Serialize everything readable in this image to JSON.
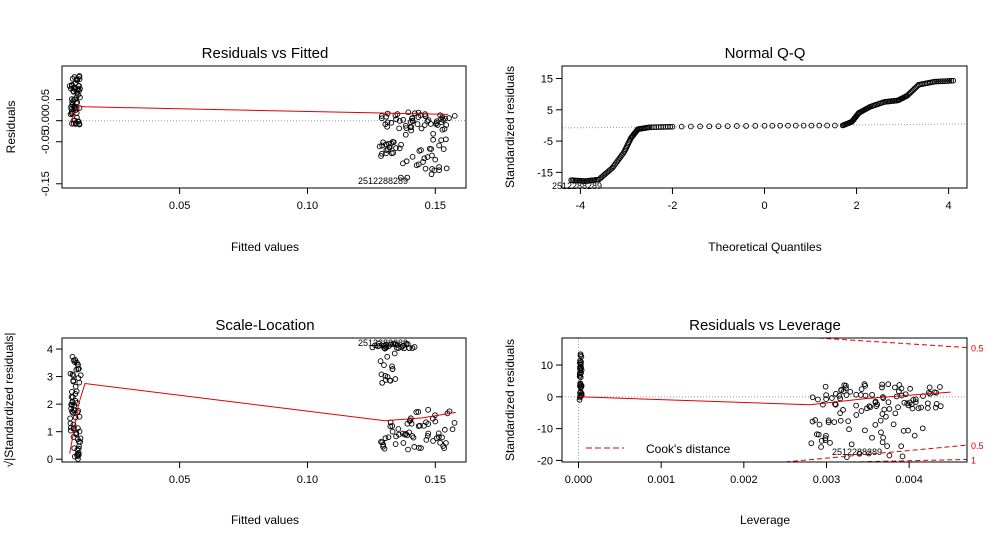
{
  "chart_data": [
    {
      "id": "residuals-vs-fitted",
      "type": "scatter",
      "title": "Residuals vs Fitted",
      "xlabel": "Fitted values",
      "ylabel": "Residuals",
      "xlim": [
        0.004,
        0.162
      ],
      "ylim": [
        -0.16,
        0.13
      ],
      "x_ticks": [
        {
          "value": 0.05,
          "label": "0.05"
        },
        {
          "value": 0.1,
          "label": "0.10"
        },
        {
          "value": 0.15,
          "label": "0.15"
        }
      ],
      "y_ticks": [
        {
          "value": 0.05,
          "label": "0.05"
        },
        {
          "value": 0.0,
          "label": "0.00"
        },
        {
          "value": -0.05,
          "label": "-0.05"
        },
        {
          "value": -0.15,
          "label": "-0.15"
        }
      ],
      "reference_line_y": 0,
      "point_clusters": [
        {
          "x_range": [
            0.007,
            0.0115
          ],
          "y_range": [
            -0.01,
            0.11
          ],
          "count": 60
        },
        {
          "x_range": [
            0.127,
            0.158
          ],
          "y_range": [
            -0.02,
            0.02
          ],
          "count": 45
        },
        {
          "x_range": [
            0.128,
            0.135
          ],
          "y_range": [
            -0.09,
            -0.05
          ],
          "count": 18
        },
        {
          "x_range": [
            0.135,
            0.157
          ],
          "y_range": [
            -0.14,
            0.0
          ],
          "count": 40
        }
      ],
      "smoother": {
        "x": [
          0.007,
          0.0105,
          0.013,
          0.155
        ],
        "y": [
          -0.005,
          0.035,
          0.033,
          0.015
        ]
      },
      "annotation": "2512288289"
    },
    {
      "id": "normal-qq",
      "type": "scatter",
      "title": "Normal Q-Q",
      "xlabel": "Theoretical Quantiles",
      "ylabel": "Standardized residuals",
      "xlim": [
        -4.4,
        4.4
      ],
      "ylim": [
        -20,
        19
      ],
      "x_ticks": [
        {
          "value": -4,
          "label": "-4"
        },
        {
          "value": -2,
          "label": "-2"
        },
        {
          "value": 0,
          "label": "0"
        },
        {
          "value": 2,
          "label": "2"
        },
        {
          "value": 4,
          "label": "4"
        }
      ],
      "y_ticks": [
        {
          "value": 15,
          "label": "15"
        },
        {
          "value": 5,
          "label": "5"
        },
        {
          "value": -5,
          "label": "-5"
        },
        {
          "value": -15,
          "label": "-15"
        }
      ],
      "qq_curve": {
        "x": [
          -4.2,
          -3.9,
          -3.6,
          -3.3,
          -3.05,
          -2.9,
          -2.75,
          -2.5,
          -2.0,
          0.0,
          1.7,
          1.9,
          2.05,
          2.3,
          2.6,
          2.9,
          3.1,
          3.35,
          3.7,
          4.1
        ],
        "y": [
          -17.5,
          -17.8,
          -17.3,
          -13.5,
          -8.5,
          -4.0,
          -1.2,
          -0.6,
          -0.4,
          -0.1,
          0.0,
          1.2,
          4.0,
          6.0,
          7.5,
          8.0,
          9.5,
          13.0,
          14.0,
          14.3
        ]
      },
      "reference_line": {
        "x": [
          -4.4,
          4.4
        ],
        "y": [
          -0.8,
          0.5
        ]
      },
      "annotation": "2512288289"
    },
    {
      "id": "scale-location",
      "type": "scatter",
      "title": "Scale-Location",
      "xlabel": "Fitted values",
      "ylabel": "√|Standardized residuals|",
      "xlim": [
        0.004,
        0.162
      ],
      "ylim": [
        -0.1,
        4.4
      ],
      "x_ticks": [
        {
          "value": 0.05,
          "label": "0.05"
        },
        {
          "value": 0.1,
          "label": "0.10"
        },
        {
          "value": 0.15,
          "label": "0.15"
        }
      ],
      "y_ticks": [
        {
          "value": 0,
          "label": "0"
        },
        {
          "value": 1,
          "label": "1"
        },
        {
          "value": 2,
          "label": "2"
        },
        {
          "value": 3,
          "label": "3"
        },
        {
          "value": 4,
          "label": "4"
        }
      ],
      "point_clusters": [
        {
          "x_range": [
            0.007,
            0.0115
          ],
          "y_range": [
            0.0,
            3.8
          ],
          "count": 70
        },
        {
          "x_range": [
            0.125,
            0.142
          ],
          "y_range": [
            4.0,
            4.2
          ],
          "count": 30
        },
        {
          "x_range": [
            0.128,
            0.135
          ],
          "y_range": [
            2.7,
            3.9
          ],
          "count": 15
        },
        {
          "x_range": [
            0.127,
            0.158
          ],
          "y_range": [
            0.3,
            1.8
          ],
          "count": 60
        }
      ],
      "smoother": {
        "x": [
          0.007,
          0.0105,
          0.013,
          0.13,
          0.145,
          0.158
        ],
        "y": [
          0.2,
          2.0,
          2.75,
          1.4,
          1.5,
          1.7
        ]
      },
      "annotation": "2512288289"
    },
    {
      "id": "residuals-vs-leverage",
      "type": "scatter",
      "title": "Residuals vs Leverage",
      "xlabel": "Leverage",
      "ylabel": "Standardized residuals",
      "xlim": [
        -0.0002,
        0.0047
      ],
      "ylim": [
        -20.5,
        18.5
      ],
      "x_ticks": [
        {
          "value": 0.0,
          "label": "0.000"
        },
        {
          "value": 0.001,
          "label": "0.001"
        },
        {
          "value": 0.002,
          "label": "0.002"
        },
        {
          "value": 0.003,
          "label": "0.003"
        },
        {
          "value": 0.004,
          "label": "0.004"
        }
      ],
      "y_ticks": [
        {
          "value": 10,
          "label": "10"
        },
        {
          "value": 0,
          "label": "0"
        },
        {
          "value": -10,
          "label": "-10"
        },
        {
          "value": -20,
          "label": "-20"
        }
      ],
      "point_clusters": [
        {
          "x_range": [
            1e-05,
            4e-05
          ],
          "y_range": [
            -1,
            14
          ],
          "count": 35
        },
        {
          "x_range": [
            0.0028,
            0.0045
          ],
          "y_range": [
            -4,
            4
          ],
          "count": 70
        },
        {
          "x_range": [
            0.0028,
            0.0031
          ],
          "y_range": [
            -17,
            -7
          ],
          "count": 15
        },
        {
          "x_range": [
            0.0031,
            0.0042
          ],
          "y_range": [
            -20,
            -2
          ],
          "count": 35
        }
      ],
      "smoother": {
        "x": [
          0.0,
          0.0028,
          0.0035,
          0.0045
        ],
        "y": [
          0.0,
          -2.5,
          -0.5,
          1.5
        ]
      },
      "cooks_contours": [
        {
          "label": "0.5",
          "x": [
            0.0029,
            0.0047
          ],
          "y": [
            18.5,
            15.5
          ]
        },
        {
          "label": "0.5",
          "x": [
            0.0025,
            0.0047
          ],
          "y": [
            -20.5,
            -15.2
          ]
        },
        {
          "label": "1",
          "x": [
            0.0033,
            0.0047
          ],
          "y": [
            -20.5,
            -19.7
          ]
        }
      ],
      "legend": {
        "label": "Cook's distance",
        "placement": "bottom-left"
      },
      "annotation": "2512288289"
    }
  ]
}
